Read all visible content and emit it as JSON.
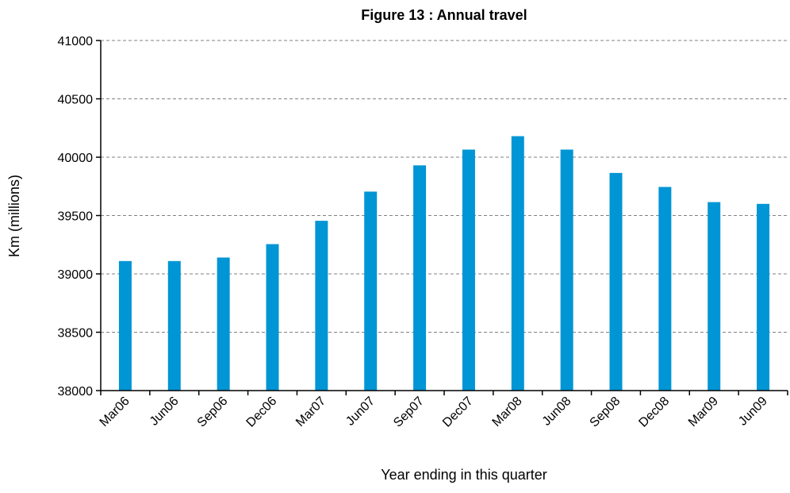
{
  "chart_data": {
    "type": "bar",
    "title": "Figure 13 : Annual travel",
    "xlabel": "Year ending in this quarter",
    "ylabel": "Km (millions)",
    "ylim": [
      38000,
      41000
    ],
    "yticks": [
      38000,
      38500,
      39000,
      39500,
      40000,
      40500,
      41000
    ],
    "grid": true,
    "legend": "none",
    "bar_color": "#0095D5",
    "categories": [
      "Mar06",
      "Jun06",
      "Sep06",
      "Dec06",
      "Mar07",
      "Jun07",
      "Sep07",
      "Dec07",
      "Mar08",
      "Jun08",
      "Sep08",
      "Dec08",
      "Mar09",
      "Jun09"
    ],
    "values": [
      39110,
      39110,
      39140,
      39255,
      39455,
      39705,
      39930,
      40065,
      40180,
      40065,
      39865,
      39745,
      39615,
      39600
    ]
  }
}
